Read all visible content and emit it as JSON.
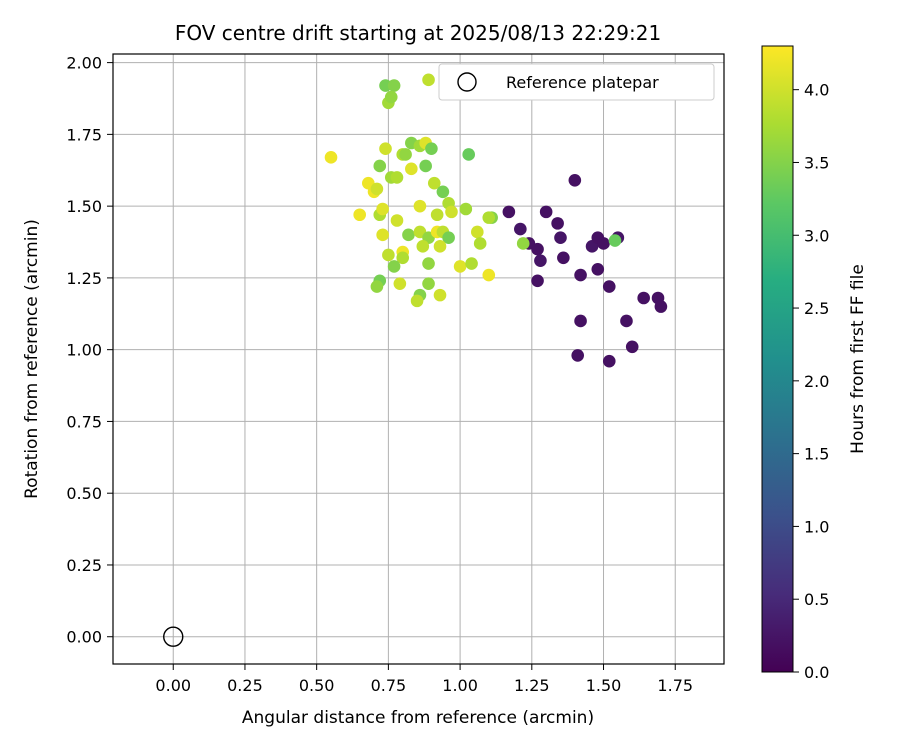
{
  "chart_data": {
    "type": "scatter",
    "title": "FOV centre drift starting at 2025/08/13 22:29:21",
    "xlabel": "Angular distance from reference (arcmin)",
    "ylabel": "Rotation from reference (arcmin)",
    "xlim": [
      -0.21,
      1.92
    ],
    "ylim": [
      -0.095,
      2.03
    ],
    "x_ticks": [
      0.0,
      0.25,
      0.5,
      0.75,
      1.0,
      1.25,
      1.5,
      1.75
    ],
    "x_tick_labels": [
      "0.00",
      "0.25",
      "0.50",
      "0.75",
      "1.00",
      "1.25",
      "1.50",
      "1.75"
    ],
    "y_ticks": [
      0.0,
      0.25,
      0.5,
      0.75,
      1.0,
      1.25,
      1.5,
      1.75,
      2.0
    ],
    "y_tick_labels": [
      "0.00",
      "0.25",
      "0.50",
      "0.75",
      "1.00",
      "1.25",
      "1.50",
      "1.75",
      "2.00"
    ],
    "grid": true,
    "colormap": "viridis",
    "colorbar": {
      "label": "Hours from first FF file",
      "range": [
        0.0,
        4.3
      ],
      "ticks": [
        0.0,
        0.5,
        1.0,
        1.5,
        2.0,
        2.5,
        3.0,
        3.5,
        4.0
      ],
      "tick_labels": [
        "0.0",
        "0.5",
        "1.0",
        "1.5",
        "2.0",
        "2.5",
        "3.0",
        "3.5",
        "4.0"
      ]
    },
    "legend": {
      "position": "top-right",
      "entries": [
        "Reference platepar"
      ]
    },
    "reference_point": {
      "x": 0.0,
      "y": 0.0,
      "label": "Reference platepar"
    },
    "series": [
      {
        "points": [
          {
            "x": 1.17,
            "y": 1.48,
            "c": 0.2
          },
          {
            "x": 1.21,
            "y": 1.42,
            "c": 0.25
          },
          {
            "x": 1.24,
            "y": 1.37,
            "c": 0.2
          },
          {
            "x": 1.27,
            "y": 1.35,
            "c": 0.2
          },
          {
            "x": 1.28,
            "y": 1.31,
            "c": 0.25
          },
          {
            "x": 1.27,
            "y": 1.24,
            "c": 0.2
          },
          {
            "x": 1.3,
            "y": 1.48,
            "c": 0.2
          },
          {
            "x": 1.34,
            "y": 1.44,
            "c": 0.2
          },
          {
            "x": 1.35,
            "y": 1.39,
            "c": 0.25
          },
          {
            "x": 1.36,
            "y": 1.32,
            "c": 0.2
          },
          {
            "x": 1.4,
            "y": 1.59,
            "c": 0.2
          },
          {
            "x": 1.42,
            "y": 1.26,
            "c": 0.2
          },
          {
            "x": 1.42,
            "y": 1.1,
            "c": 0.2
          },
          {
            "x": 1.41,
            "y": 0.98,
            "c": 0.2
          },
          {
            "x": 1.46,
            "y": 1.36,
            "c": 0.25
          },
          {
            "x": 1.48,
            "y": 1.39,
            "c": 0.2
          },
          {
            "x": 1.5,
            "y": 1.37,
            "c": 0.2
          },
          {
            "x": 1.48,
            "y": 1.28,
            "c": 0.2
          },
          {
            "x": 1.52,
            "y": 1.22,
            "c": 0.2
          },
          {
            "x": 1.52,
            "y": 0.96,
            "c": 0.2
          },
          {
            "x": 1.55,
            "y": 1.39,
            "c": 0.25
          },
          {
            "x": 1.58,
            "y": 1.1,
            "c": 0.2
          },
          {
            "x": 1.6,
            "y": 1.01,
            "c": 0.2
          },
          {
            "x": 1.64,
            "y": 1.18,
            "c": 0.2
          },
          {
            "x": 1.69,
            "y": 1.18,
            "c": 0.2
          },
          {
            "x": 1.7,
            "y": 1.15,
            "c": 0.2
          },
          {
            "x": 1.54,
            "y": 1.38,
            "c": 3.3
          },
          {
            "x": 0.74,
            "y": 1.92,
            "c": 3.4
          },
          {
            "x": 0.77,
            "y": 1.92,
            "c": 3.5
          },
          {
            "x": 0.75,
            "y": 1.86,
            "c": 3.7
          },
          {
            "x": 0.76,
            "y": 1.88,
            "c": 3.6
          },
          {
            "x": 0.89,
            "y": 1.94,
            "c": 3.9
          },
          {
            "x": 0.83,
            "y": 1.72,
            "c": 3.5
          },
          {
            "x": 0.86,
            "y": 1.71,
            "c": 3.7
          },
          {
            "x": 0.88,
            "y": 1.72,
            "c": 4.1
          },
          {
            "x": 0.9,
            "y": 1.7,
            "c": 3.4
          },
          {
            "x": 1.03,
            "y": 1.68,
            "c": 3.3
          },
          {
            "x": 0.55,
            "y": 1.67,
            "c": 4.2
          },
          {
            "x": 0.74,
            "y": 1.7,
            "c": 4.0
          },
          {
            "x": 0.72,
            "y": 1.64,
            "c": 3.5
          },
          {
            "x": 0.8,
            "y": 1.68,
            "c": 3.8
          },
          {
            "x": 0.81,
            "y": 1.68,
            "c": 3.6
          },
          {
            "x": 0.88,
            "y": 1.64,
            "c": 3.4
          },
          {
            "x": 0.83,
            "y": 1.63,
            "c": 4.1
          },
          {
            "x": 0.68,
            "y": 1.58,
            "c": 4.2
          },
          {
            "x": 0.7,
            "y": 1.55,
            "c": 4.2
          },
          {
            "x": 0.71,
            "y": 1.56,
            "c": 4.0
          },
          {
            "x": 0.76,
            "y": 1.6,
            "c": 3.7
          },
          {
            "x": 0.78,
            "y": 1.6,
            "c": 3.8
          },
          {
            "x": 0.91,
            "y": 1.58,
            "c": 3.9
          },
          {
            "x": 0.94,
            "y": 1.55,
            "c": 3.4
          },
          {
            "x": 0.96,
            "y": 1.51,
            "c": 3.8
          },
          {
            "x": 0.65,
            "y": 1.47,
            "c": 4.2
          },
          {
            "x": 0.72,
            "y": 1.47,
            "c": 3.8
          },
          {
            "x": 0.73,
            "y": 1.49,
            "c": 4.1
          },
          {
            "x": 0.78,
            "y": 1.45,
            "c": 4.0
          },
          {
            "x": 0.86,
            "y": 1.5,
            "c": 4.1
          },
          {
            "x": 0.92,
            "y": 1.47,
            "c": 3.9
          },
          {
            "x": 0.97,
            "y": 1.48,
            "c": 4.0
          },
          {
            "x": 1.02,
            "y": 1.49,
            "c": 3.7
          },
          {
            "x": 1.11,
            "y": 1.46,
            "c": 3.5
          },
          {
            "x": 1.1,
            "y": 1.46,
            "c": 3.8
          },
          {
            "x": 0.73,
            "y": 1.4,
            "c": 4.1
          },
          {
            "x": 0.82,
            "y": 1.4,
            "c": 3.5
          },
          {
            "x": 0.86,
            "y": 1.41,
            "c": 3.9
          },
          {
            "x": 0.89,
            "y": 1.39,
            "c": 3.6
          },
          {
            "x": 0.92,
            "y": 1.41,
            "c": 4.2
          },
          {
            "x": 0.94,
            "y": 1.41,
            "c": 3.9
          },
          {
            "x": 0.96,
            "y": 1.39,
            "c": 3.4
          },
          {
            "x": 1.06,
            "y": 1.41,
            "c": 4.0
          },
          {
            "x": 1.07,
            "y": 1.37,
            "c": 3.8
          },
          {
            "x": 1.22,
            "y": 1.37,
            "c": 3.6
          },
          {
            "x": 0.87,
            "y": 1.36,
            "c": 3.9
          },
          {
            "x": 0.93,
            "y": 1.36,
            "c": 4.0
          },
          {
            "x": 0.75,
            "y": 1.33,
            "c": 3.9
          },
          {
            "x": 0.8,
            "y": 1.34,
            "c": 4.2
          },
          {
            "x": 0.8,
            "y": 1.32,
            "c": 3.8
          },
          {
            "x": 0.77,
            "y": 1.29,
            "c": 3.5
          },
          {
            "x": 0.89,
            "y": 1.3,
            "c": 3.6
          },
          {
            "x": 1.0,
            "y": 1.29,
            "c": 4.1
          },
          {
            "x": 1.04,
            "y": 1.3,
            "c": 3.8
          },
          {
            "x": 1.1,
            "y": 1.26,
            "c": 4.2
          },
          {
            "x": 0.72,
            "y": 1.24,
            "c": 3.4
          },
          {
            "x": 0.71,
            "y": 1.22,
            "c": 3.6
          },
          {
            "x": 0.79,
            "y": 1.23,
            "c": 4.0
          },
          {
            "x": 0.89,
            "y": 1.23,
            "c": 3.6
          },
          {
            "x": 0.86,
            "y": 1.19,
            "c": 3.5
          },
          {
            "x": 0.85,
            "y": 1.17,
            "c": 3.9
          },
          {
            "x": 0.93,
            "y": 1.19,
            "c": 4.0
          }
        ]
      }
    ]
  }
}
